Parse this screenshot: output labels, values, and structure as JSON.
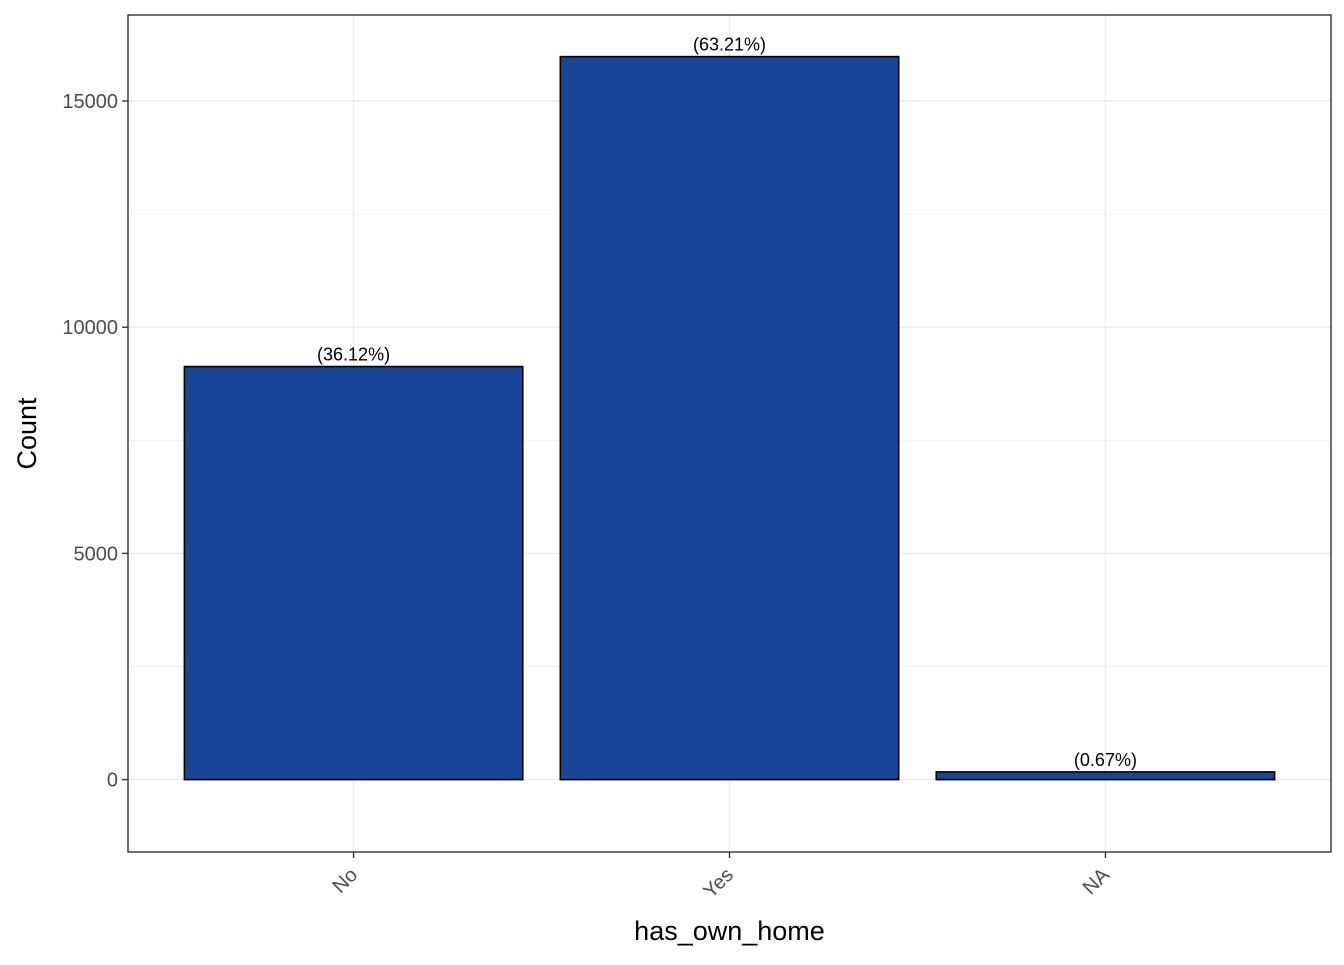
{
  "chart_data": {
    "type": "bar",
    "categories": [
      "No",
      "Yes",
      "NA"
    ],
    "values": [
      9130,
      15980,
      170
    ],
    "data_labels": [
      "(36.12%)",
      "(63.21%)",
      "(0.67%)"
    ],
    "xlabel": "has_own_home",
    "ylabel": "Count",
    "ylim": [
      -1600,
      16900
    ],
    "yticks": [
      0,
      5000,
      10000,
      15000
    ],
    "ytick_labels": [
      "0",
      "5000",
      "10000",
      "15000"
    ],
    "grid": true,
    "legend": "none",
    "colors": {
      "bar_fill": "#18449a",
      "bar_border": "#000000",
      "panel_border": "#333333"
    }
  }
}
